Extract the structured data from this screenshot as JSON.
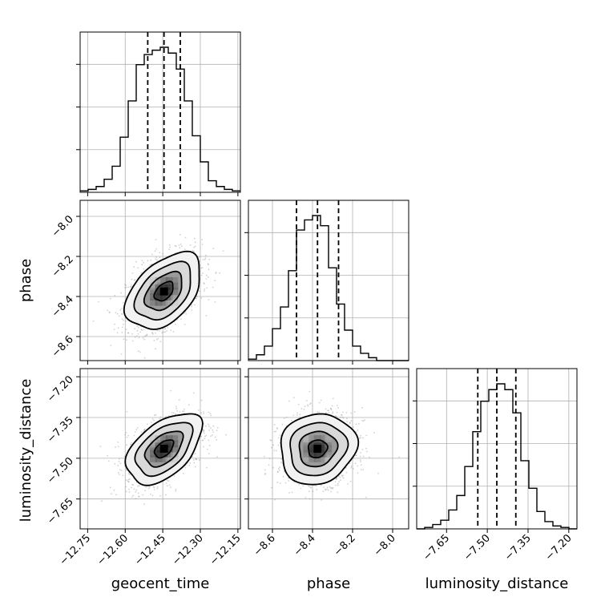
{
  "chart_data": {
    "type": "corner",
    "title": "",
    "parameters": [
      "geocent_time",
      "phase",
      "luminosity_distance"
    ],
    "axis_labels": {
      "geocent_time": "geocent_time",
      "phase": "phase",
      "luminosity_distance": "luminosity_distance"
    },
    "grid": true,
    "ranges": {
      "geocent_time": [
        -12.78,
        -12.14
      ],
      "phase": [
        -8.72,
        -7.92
      ],
      "luminosity_distance": [
        -7.76,
        -7.17
      ]
    },
    "ticks": {
      "geocent_time": [
        "-12.75",
        "-12.60",
        "-12.45",
        "-12.30",
        "-12.15"
      ],
      "phase": [
        "-8.6",
        "-8.4",
        "-8.2",
        "-8.0"
      ],
      "luminosity_distance": [
        "-7.65",
        "-7.50",
        "-7.35",
        "-7.20"
      ]
    },
    "tick_values": {
      "geocent_time": [
        -12.75,
        -12.6,
        -12.45,
        -12.3,
        -12.15
      ],
      "phase": [
        -8.6,
        -8.4,
        -8.2,
        -8.0
      ],
      "luminosity_distance": [
        -7.65,
        -7.5,
        -7.35,
        -7.2
      ]
    },
    "histograms": {
      "geocent_time": {
        "edges": [
          -12.78,
          -12.748,
          -12.716,
          -12.684,
          -12.652,
          -12.62,
          -12.588,
          -12.556,
          -12.524,
          -12.492,
          -12.46,
          -12.428,
          -12.396,
          -12.364,
          -12.332,
          -12.3,
          -12.268,
          -12.236,
          -12.204,
          -12.172,
          -12.14
        ],
        "counts": [
          1,
          2,
          4,
          9,
          18,
          38,
          63,
          88,
          95,
          98,
          100,
          96,
          85,
          63,
          39,
          21,
          8,
          4,
          2,
          1
        ]
      },
      "phase": {
        "edges": [
          -8.72,
          -8.68,
          -8.64,
          -8.6,
          -8.56,
          -8.52,
          -8.48,
          -8.44,
          -8.4,
          -8.36,
          -8.32,
          -8.28,
          -8.24,
          -8.2,
          -8.16,
          -8.12,
          -8.08,
          -8.04,
          -8.0,
          -7.96,
          -7.92
        ],
        "counts": [
          1,
          4,
          10,
          22,
          37,
          62,
          90,
          97,
          100,
          93,
          64,
          39,
          21,
          10,
          5,
          2,
          0,
          0,
          0,
          0
        ]
      },
      "luminosity_distance": {
        "edges": [
          -7.76,
          -7.7305,
          -7.701,
          -7.6715,
          -7.642,
          -7.6125,
          -7.583,
          -7.5535,
          -7.524,
          -7.4945,
          -7.465,
          -7.4355,
          -7.406,
          -7.3765,
          -7.347,
          -7.3175,
          -7.288,
          -7.2585,
          -7.229,
          -7.1995,
          -7.17
        ],
        "counts": [
          0,
          1,
          3,
          6,
          13,
          23,
          43,
          67,
          88,
          96,
          100,
          96,
          80,
          47,
          28,
          12,
          5,
          2,
          1,
          0
        ]
      }
    },
    "quantiles": {
      "geocent_time": [
        -12.51,
        -12.445,
        -12.38
      ],
      "phase": [
        -8.48,
        -8.375,
        -8.27
      ],
      "luminosity_distance": [
        -7.535,
        -7.465,
        -7.395
      ]
    },
    "pairs": [
      {
        "x": "geocent_time",
        "y": "phase",
        "mean": [
          -12.445,
          -8.375
        ],
        "sd": [
          0.075,
          0.095
        ],
        "rho": 0.45
      },
      {
        "x": "geocent_time",
        "y": "luminosity_distance",
        "mean": [
          -12.445,
          -7.465
        ],
        "sd": [
          0.075,
          0.065
        ],
        "rho": 0.5
      },
      {
        "x": "phase",
        "y": "luminosity_distance",
        "mean": [
          -8.375,
          -7.465
        ],
        "sd": [
          0.095,
          0.065
        ],
        "rho": 0.1
      }
    ],
    "contour_levels": [
      0.118,
      0.393,
      0.675,
      0.865
    ]
  }
}
